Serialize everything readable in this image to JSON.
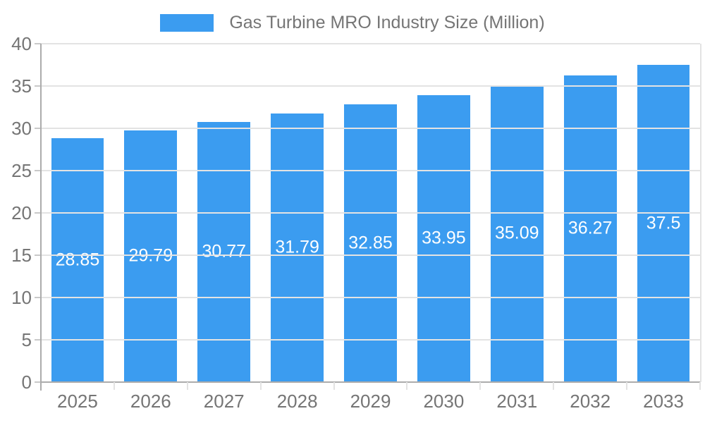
{
  "legend": {
    "label": "Gas Turbine MRO Industry Size (Million)"
  },
  "chart_data": {
    "type": "bar",
    "title": "Gas Turbine MRO Industry Size (Million)",
    "categories": [
      "2025",
      "2026",
      "2027",
      "2028",
      "2029",
      "2030",
      "2031",
      "2032",
      "2033"
    ],
    "values": [
      28.85,
      29.79,
      30.77,
      31.79,
      32.85,
      33.95,
      35.09,
      36.27,
      37.5
    ],
    "value_labels": [
      "28.85",
      "29.79",
      "30.77",
      "31.79",
      "32.85",
      "33.95",
      "35.09",
      "36.27",
      "37.5"
    ],
    "xlabel": "",
    "ylabel": "",
    "ylim": [
      0,
      40
    ],
    "yticks": [
      0,
      5,
      10,
      15,
      20,
      25,
      30,
      35,
      40
    ],
    "grid": true,
    "legend_position": "top",
    "colors": {
      "bar": "#3b9cf0",
      "value_label": "#ffffff",
      "axis_text": "#757575",
      "gridline": "#e3e3e3",
      "axis_line": "#acacac",
      "tick": "#c9c9c9"
    }
  }
}
